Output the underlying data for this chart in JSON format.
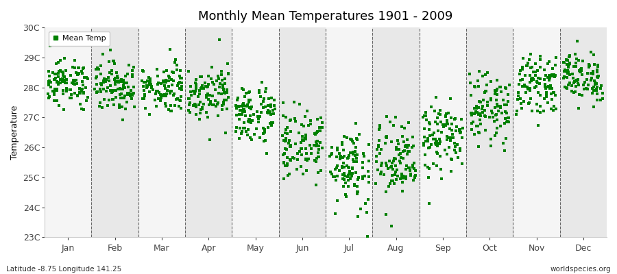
{
  "title": "Monthly Mean Temperatures 1901 - 2009",
  "ylabel": "Temperature",
  "xlabel_labels": [
    "Jan",
    "Feb",
    "Mar",
    "Apr",
    "May",
    "Jun",
    "Jul",
    "Aug",
    "Sep",
    "Oct",
    "Nov",
    "Dec"
  ],
  "ytick_labels": [
    "23C",
    "24C",
    "25C",
    "26C",
    "27C",
    "28C",
    "29C",
    "30C"
  ],
  "ytick_values": [
    23,
    24,
    25,
    26,
    27,
    28,
    29,
    30
  ],
  "ylim": [
    23,
    30
  ],
  "dot_color": "#008000",
  "bg_color_light": "#f5f5f5",
  "bg_color_dark": "#e8e8e8",
  "legend_label": "Mean Temp",
  "footnote_left": "Latitude -8.75 Longitude 141.25",
  "footnote_right": "worldspecies.org",
  "monthly_means": [
    28.15,
    28.05,
    28.0,
    27.85,
    27.1,
    26.1,
    25.4,
    25.5,
    26.3,
    27.3,
    28.1,
    28.35
  ],
  "monthly_stds": [
    0.38,
    0.42,
    0.4,
    0.45,
    0.5,
    0.58,
    0.7,
    0.68,
    0.58,
    0.55,
    0.45,
    0.42
  ],
  "n_years": 109,
  "seed": 12345,
  "dot_size": 7,
  "title_fontsize": 13,
  "axis_fontsize": 9,
  "ylabel_fontsize": 9
}
